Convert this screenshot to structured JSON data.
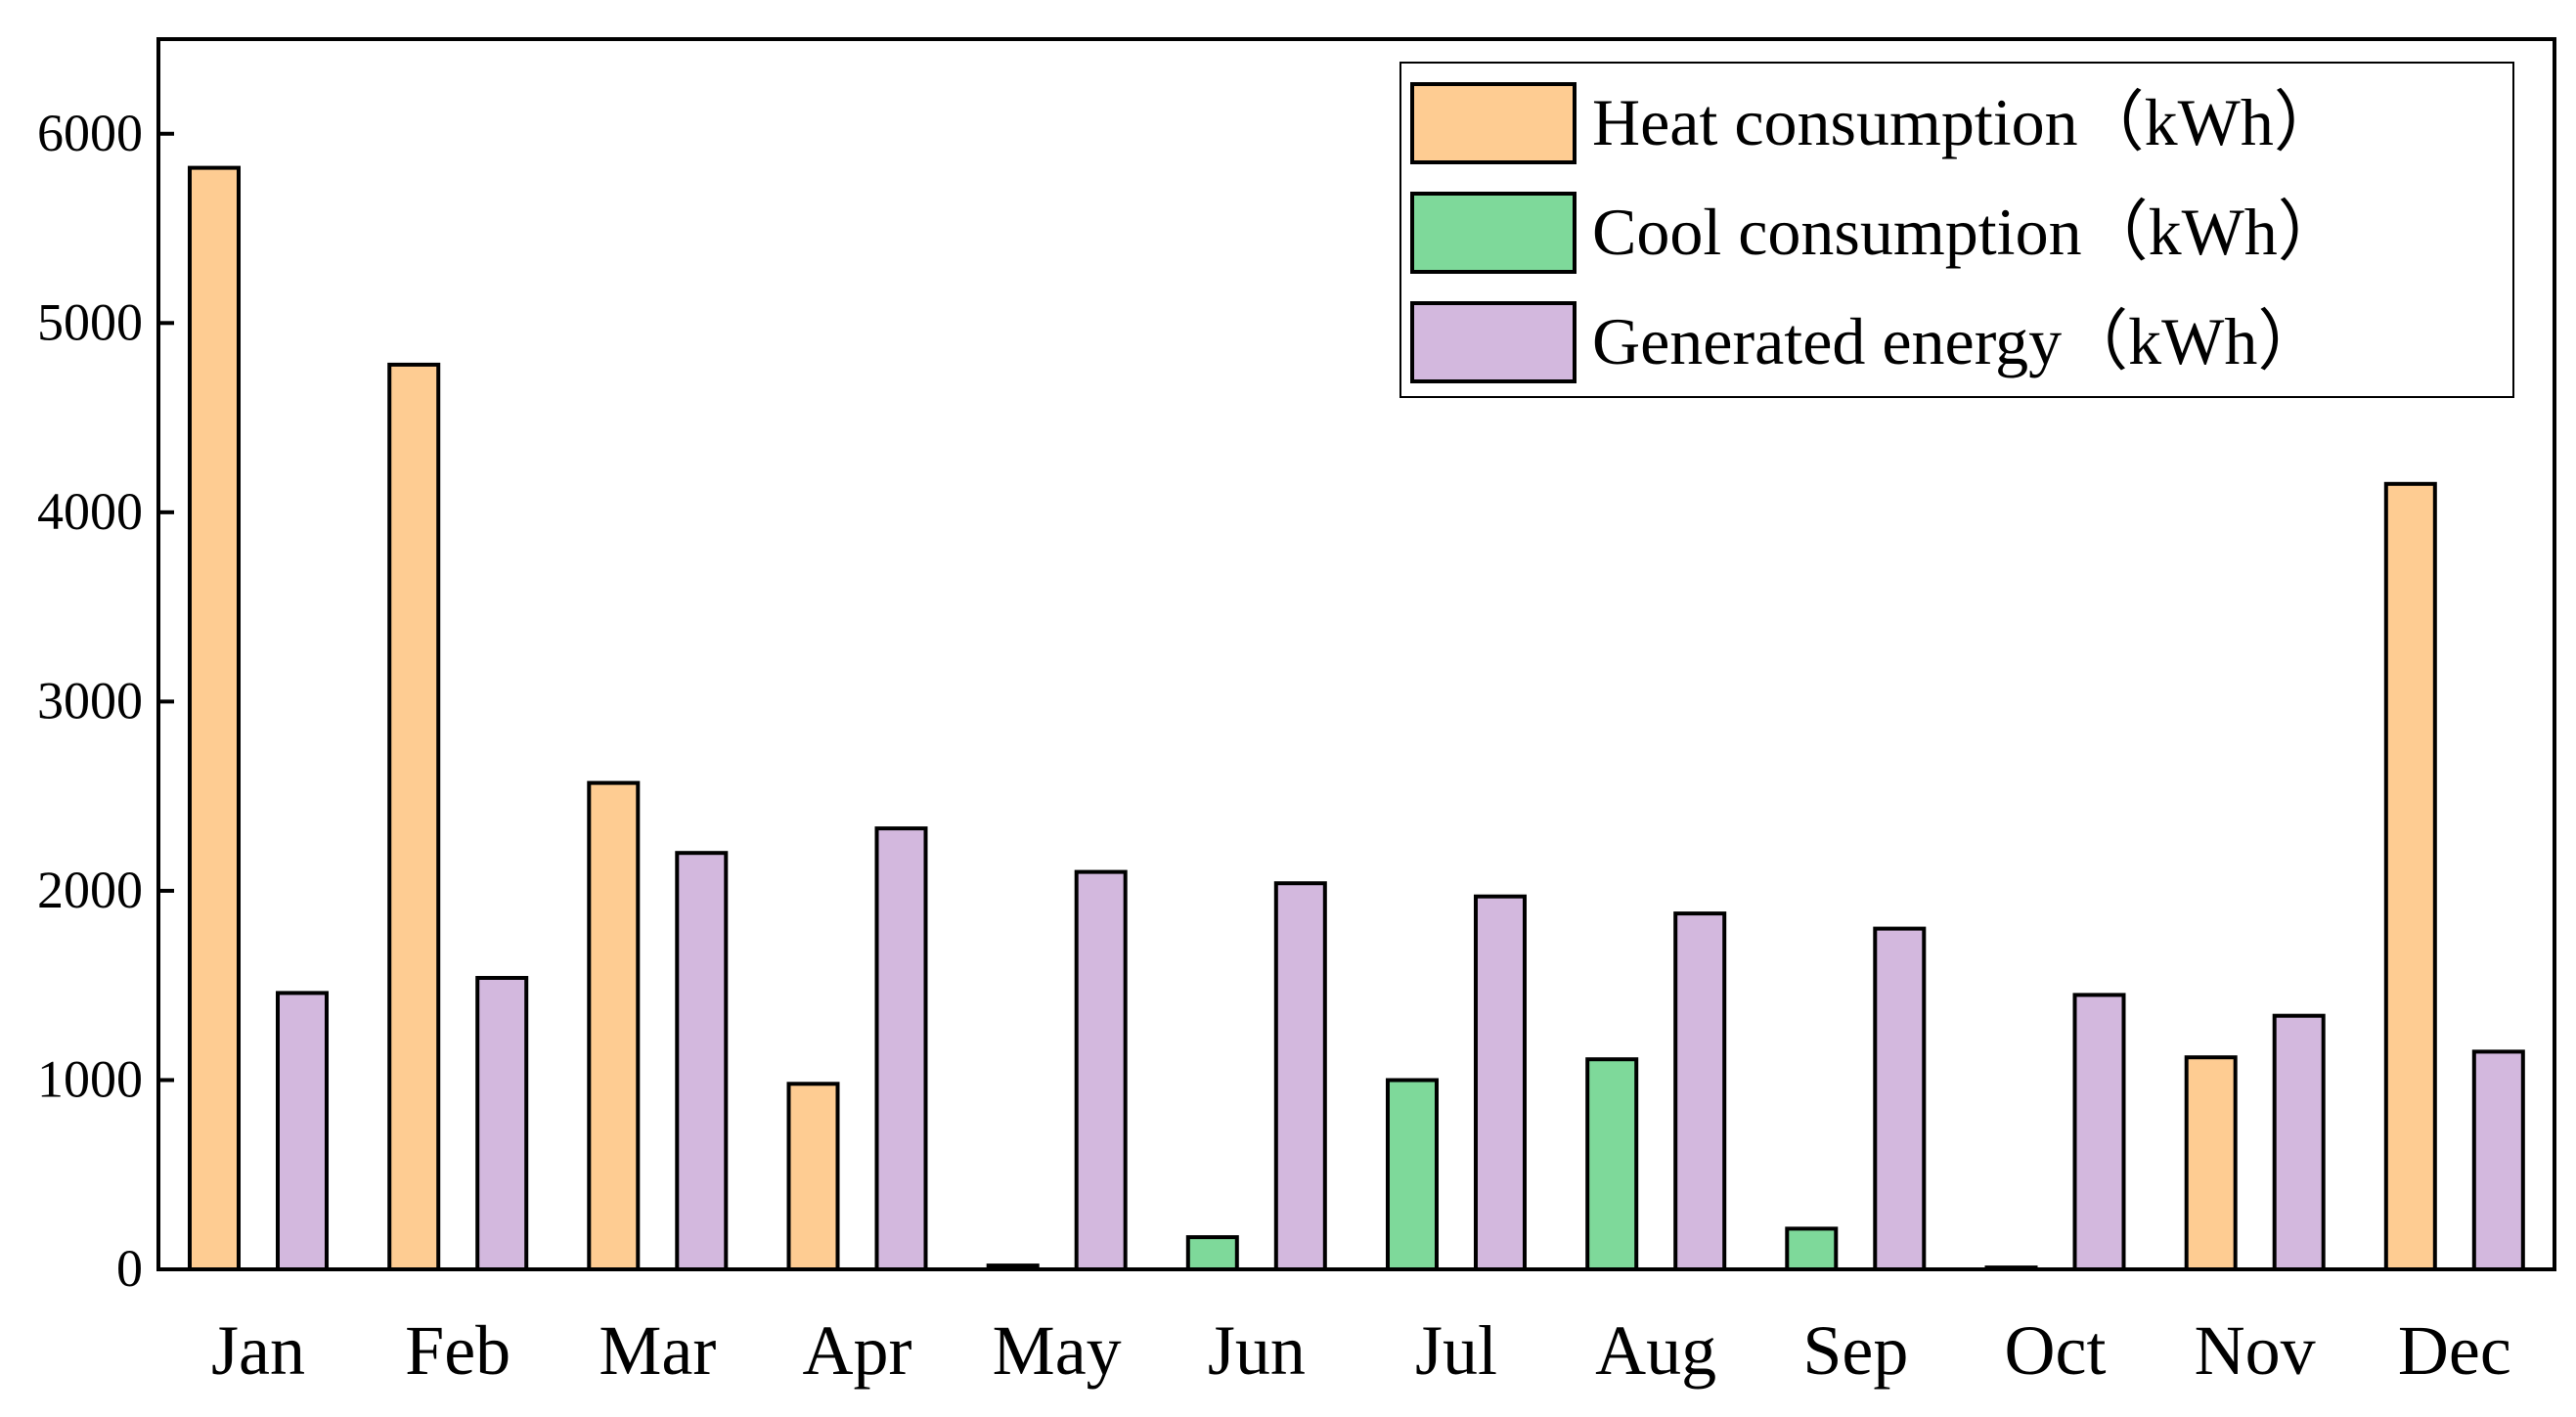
{
  "chart_data": {
    "type": "bar",
    "title": "",
    "xlabel": "",
    "ylabel": "",
    "ylim": [
      0,
      6500
    ],
    "yticks": [
      0,
      1000,
      2000,
      3000,
      4000,
      5000,
      6000
    ],
    "ytick_labels": [
      "0",
      "1000",
      "2000",
      "3000",
      "4000",
      "5000",
      "6000"
    ],
    "categories": [
      "Jan",
      "Feb",
      "Mar",
      "Apr",
      "May",
      "Jun",
      "Jul",
      "Aug",
      "Sep",
      "Oct",
      "Nov",
      "Dec"
    ],
    "series": [
      {
        "name": "Heat consumption（kWh）",
        "color": "#FECC92",
        "values": [
          5820,
          4780,
          2570,
          980,
          0,
          0,
          0,
          0,
          0,
          0,
          1120,
          4150
        ]
      },
      {
        "name": "Cool consumption（kWh）",
        "color": "#7ED99A",
        "values": [
          0,
          0,
          0,
          0,
          20,
          170,
          1000,
          1110,
          215,
          10,
          0,
          0
        ]
      },
      {
        "name": "Generated energy（kWh）",
        "color": "#D3B8DE",
        "values": [
          1460,
          1540,
          2200,
          2330,
          2100,
          2040,
          1970,
          1880,
          1800,
          1450,
          1340,
          1150
        ]
      }
    ],
    "legend_position": "top-right",
    "grid": false
  }
}
